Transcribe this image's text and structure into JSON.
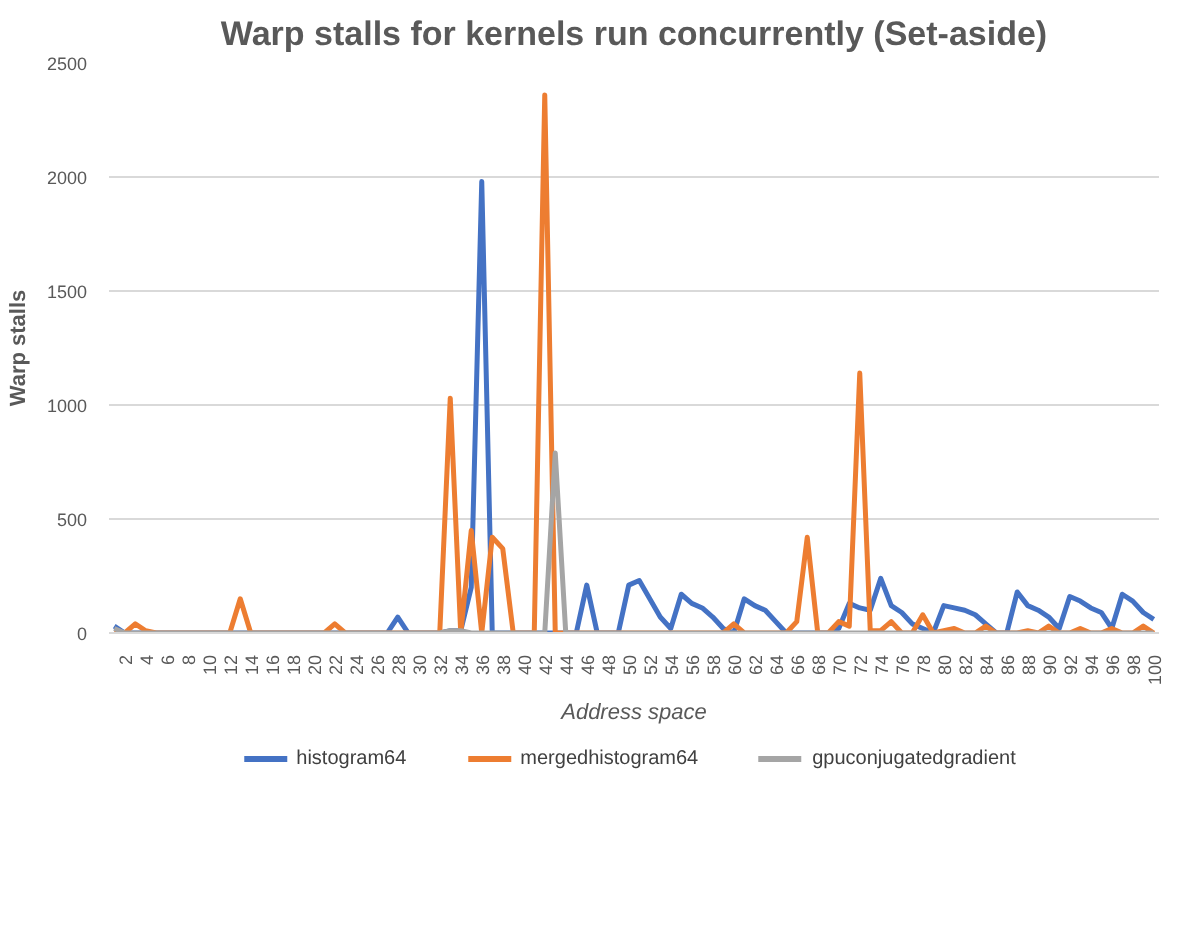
{
  "chart_data": {
    "type": "line",
    "title": "Warp stalls for kernels run concurrently (Set-aside)",
    "xlabel": "Address space",
    "ylabel": "Warp stalls",
    "categories": [
      null,
      "2",
      null,
      "4",
      null,
      "6",
      null,
      "8",
      null,
      "10",
      null,
      "12",
      null,
      "14",
      null,
      "16",
      null,
      "18",
      null,
      "20",
      null,
      "22",
      null,
      "24",
      null,
      "26",
      null,
      "28",
      null,
      "30",
      null,
      "32",
      null,
      "34",
      null,
      "36",
      null,
      "38",
      null,
      "40",
      null,
      "42",
      null,
      "44",
      null,
      "46",
      null,
      "48",
      null,
      "50",
      null,
      "52",
      null,
      "54",
      null,
      "56",
      null,
      "58",
      null,
      "60",
      null,
      "62",
      null,
      "64",
      null,
      "66",
      null,
      "68",
      null,
      "70",
      null,
      "72",
      null,
      "74",
      null,
      "76",
      null,
      "78",
      null,
      "80",
      null,
      "82",
      null,
      "84",
      null,
      "86",
      null,
      "88",
      null,
      "90",
      null,
      "92",
      null,
      "94",
      null,
      "96",
      null,
      "98",
      null,
      "100"
    ],
    "series": [
      {
        "name": "histogram64",
        "color": "#4472c4",
        "values": [
          30,
          0,
          0,
          0,
          0,
          0,
          0,
          0,
          0,
          0,
          0,
          0,
          0,
          0,
          0,
          0,
          0,
          0,
          0,
          0,
          0,
          0,
          0,
          0,
          0,
          0,
          0,
          70,
          0,
          0,
          0,
          0,
          10,
          10,
          200,
          1980,
          0,
          0,
          0,
          0,
          0,
          0,
          0,
          0,
          0,
          210,
          0,
          0,
          0,
          210,
          230,
          150,
          70,
          20,
          170,
          130,
          110,
          70,
          20,
          0,
          150,
          120,
          100,
          50,
          0,
          0,
          0,
          0,
          0,
          20,
          130,
          110,
          100,
          240,
          120,
          90,
          40,
          20,
          0,
          120,
          110,
          100,
          80,
          40,
          0,
          0,
          180,
          120,
          100,
          70,
          20,
          160,
          140,
          110,
          90,
          20,
          170,
          140,
          90,
          60
        ]
      },
      {
        "name": "mergedhistogram64",
        "color": "#ed7d31",
        "values": [
          0,
          0,
          40,
          10,
          0,
          0,
          0,
          0,
          0,
          0,
          0,
          0,
          150,
          0,
          0,
          0,
          0,
          0,
          0,
          0,
          0,
          40,
          0,
          0,
          0,
          0,
          0,
          0,
          0,
          0,
          0,
          0,
          1030,
          0,
          450,
          0,
          420,
          370,
          0,
          0,
          0,
          2360,
          0,
          0,
          0,
          0,
          0,
          0,
          0,
          0,
          0,
          0,
          0,
          0,
          0,
          0,
          0,
          0,
          0,
          40,
          0,
          0,
          0,
          0,
          0,
          50,
          420,
          0,
          0,
          50,
          30,
          1140,
          10,
          10,
          50,
          0,
          0,
          80,
          0,
          10,
          20,
          0,
          0,
          30,
          0,
          0,
          0,
          10,
          0,
          30,
          0,
          0,
          20,
          0,
          0,
          20,
          0,
          0,
          30,
          0
        ]
      },
      {
        "name": "gpuconjugatedgradient",
        "color": "#a5a5a5",
        "values": [
          20,
          0,
          0,
          0,
          0,
          0,
          0,
          0,
          0,
          0,
          0,
          0,
          0,
          0,
          0,
          0,
          0,
          0,
          0,
          0,
          0,
          0,
          0,
          0,
          0,
          0,
          0,
          0,
          0,
          0,
          0,
          0,
          10,
          10,
          0,
          0,
          0,
          0,
          0,
          0,
          0,
          0,
          790,
          0,
          0,
          0,
          0,
          0,
          0,
          0,
          0,
          0,
          0,
          0,
          0,
          0,
          0,
          0,
          0,
          0,
          0,
          0,
          0,
          0,
          0,
          0,
          0,
          0,
          0,
          0,
          0,
          0,
          0,
          0,
          0,
          0,
          0,
          0,
          0,
          0,
          0,
          0,
          0,
          0,
          0,
          0,
          0,
          0,
          0,
          0,
          0,
          0,
          0,
          0,
          0,
          0,
          0,
          0,
          0,
          0
        ]
      }
    ],
    "ylim": [
      0,
      2500
    ],
    "yticks": [
      0,
      500,
      1000,
      1500,
      2000,
      2500
    ],
    "grid": "y",
    "legend": "bottom",
    "line_style": "solid",
    "marker": "none"
  }
}
